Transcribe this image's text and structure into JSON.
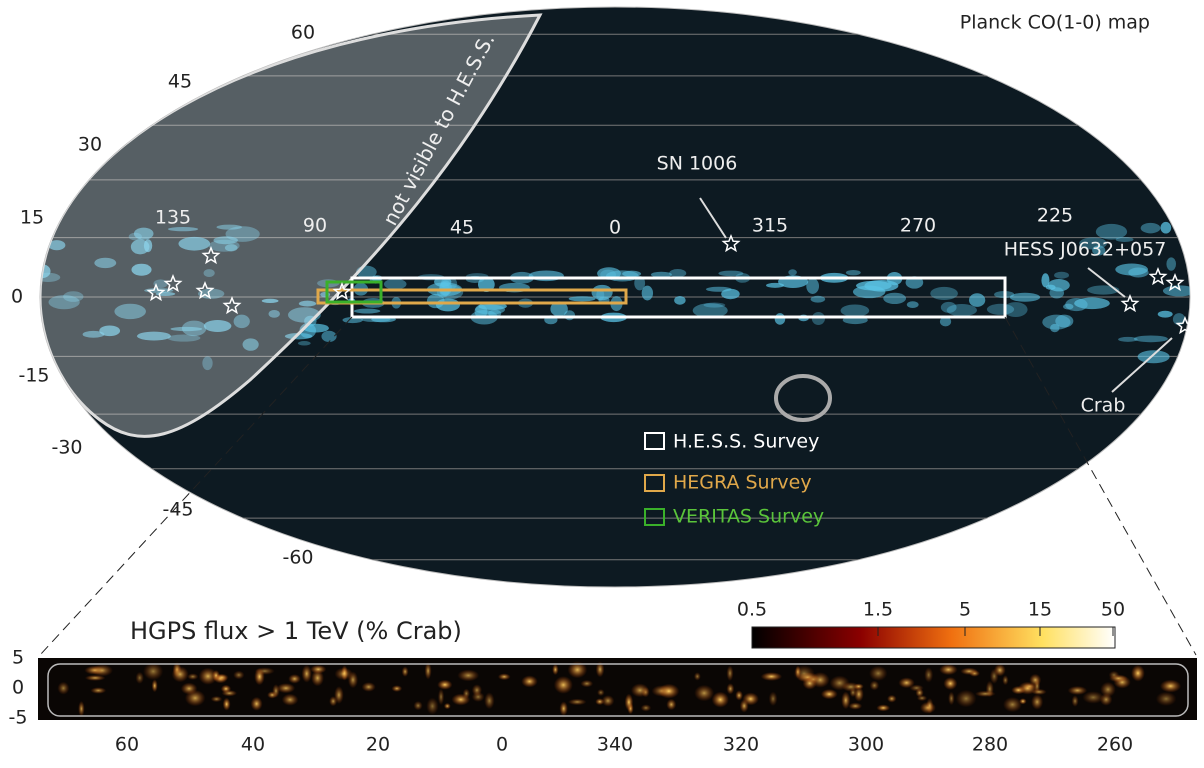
{
  "map": {
    "title": "Planck CO(1-0) map",
    "lat_labels": [
      "60",
      "45",
      "30",
      "15",
      "0",
      "-15",
      "-30",
      "-45",
      "-60"
    ],
    "lon_labels": [
      "135",
      "90",
      "45",
      "0",
      "315",
      "270",
      "225"
    ],
    "region_label": "not visible to H.E.S.S.",
    "annotations": [
      "SN 1006",
      "HESS J0632+057",
      "Crab"
    ],
    "legend": [
      "H.E.S.S. Survey",
      "HEGRA Survey",
      "VERITAS Survey"
    ]
  },
  "inset": {
    "title": "HGPS flux > 1 TeV (% Crab)",
    "colorbar_labels": [
      "0.5",
      "1.5",
      "5",
      "15",
      "50"
    ],
    "y_labels": [
      "5",
      "0",
      "-5"
    ],
    "x_labels": [
      "60",
      "40",
      "20",
      "0",
      "340",
      "320",
      "300",
      "280",
      "260"
    ]
  }
}
